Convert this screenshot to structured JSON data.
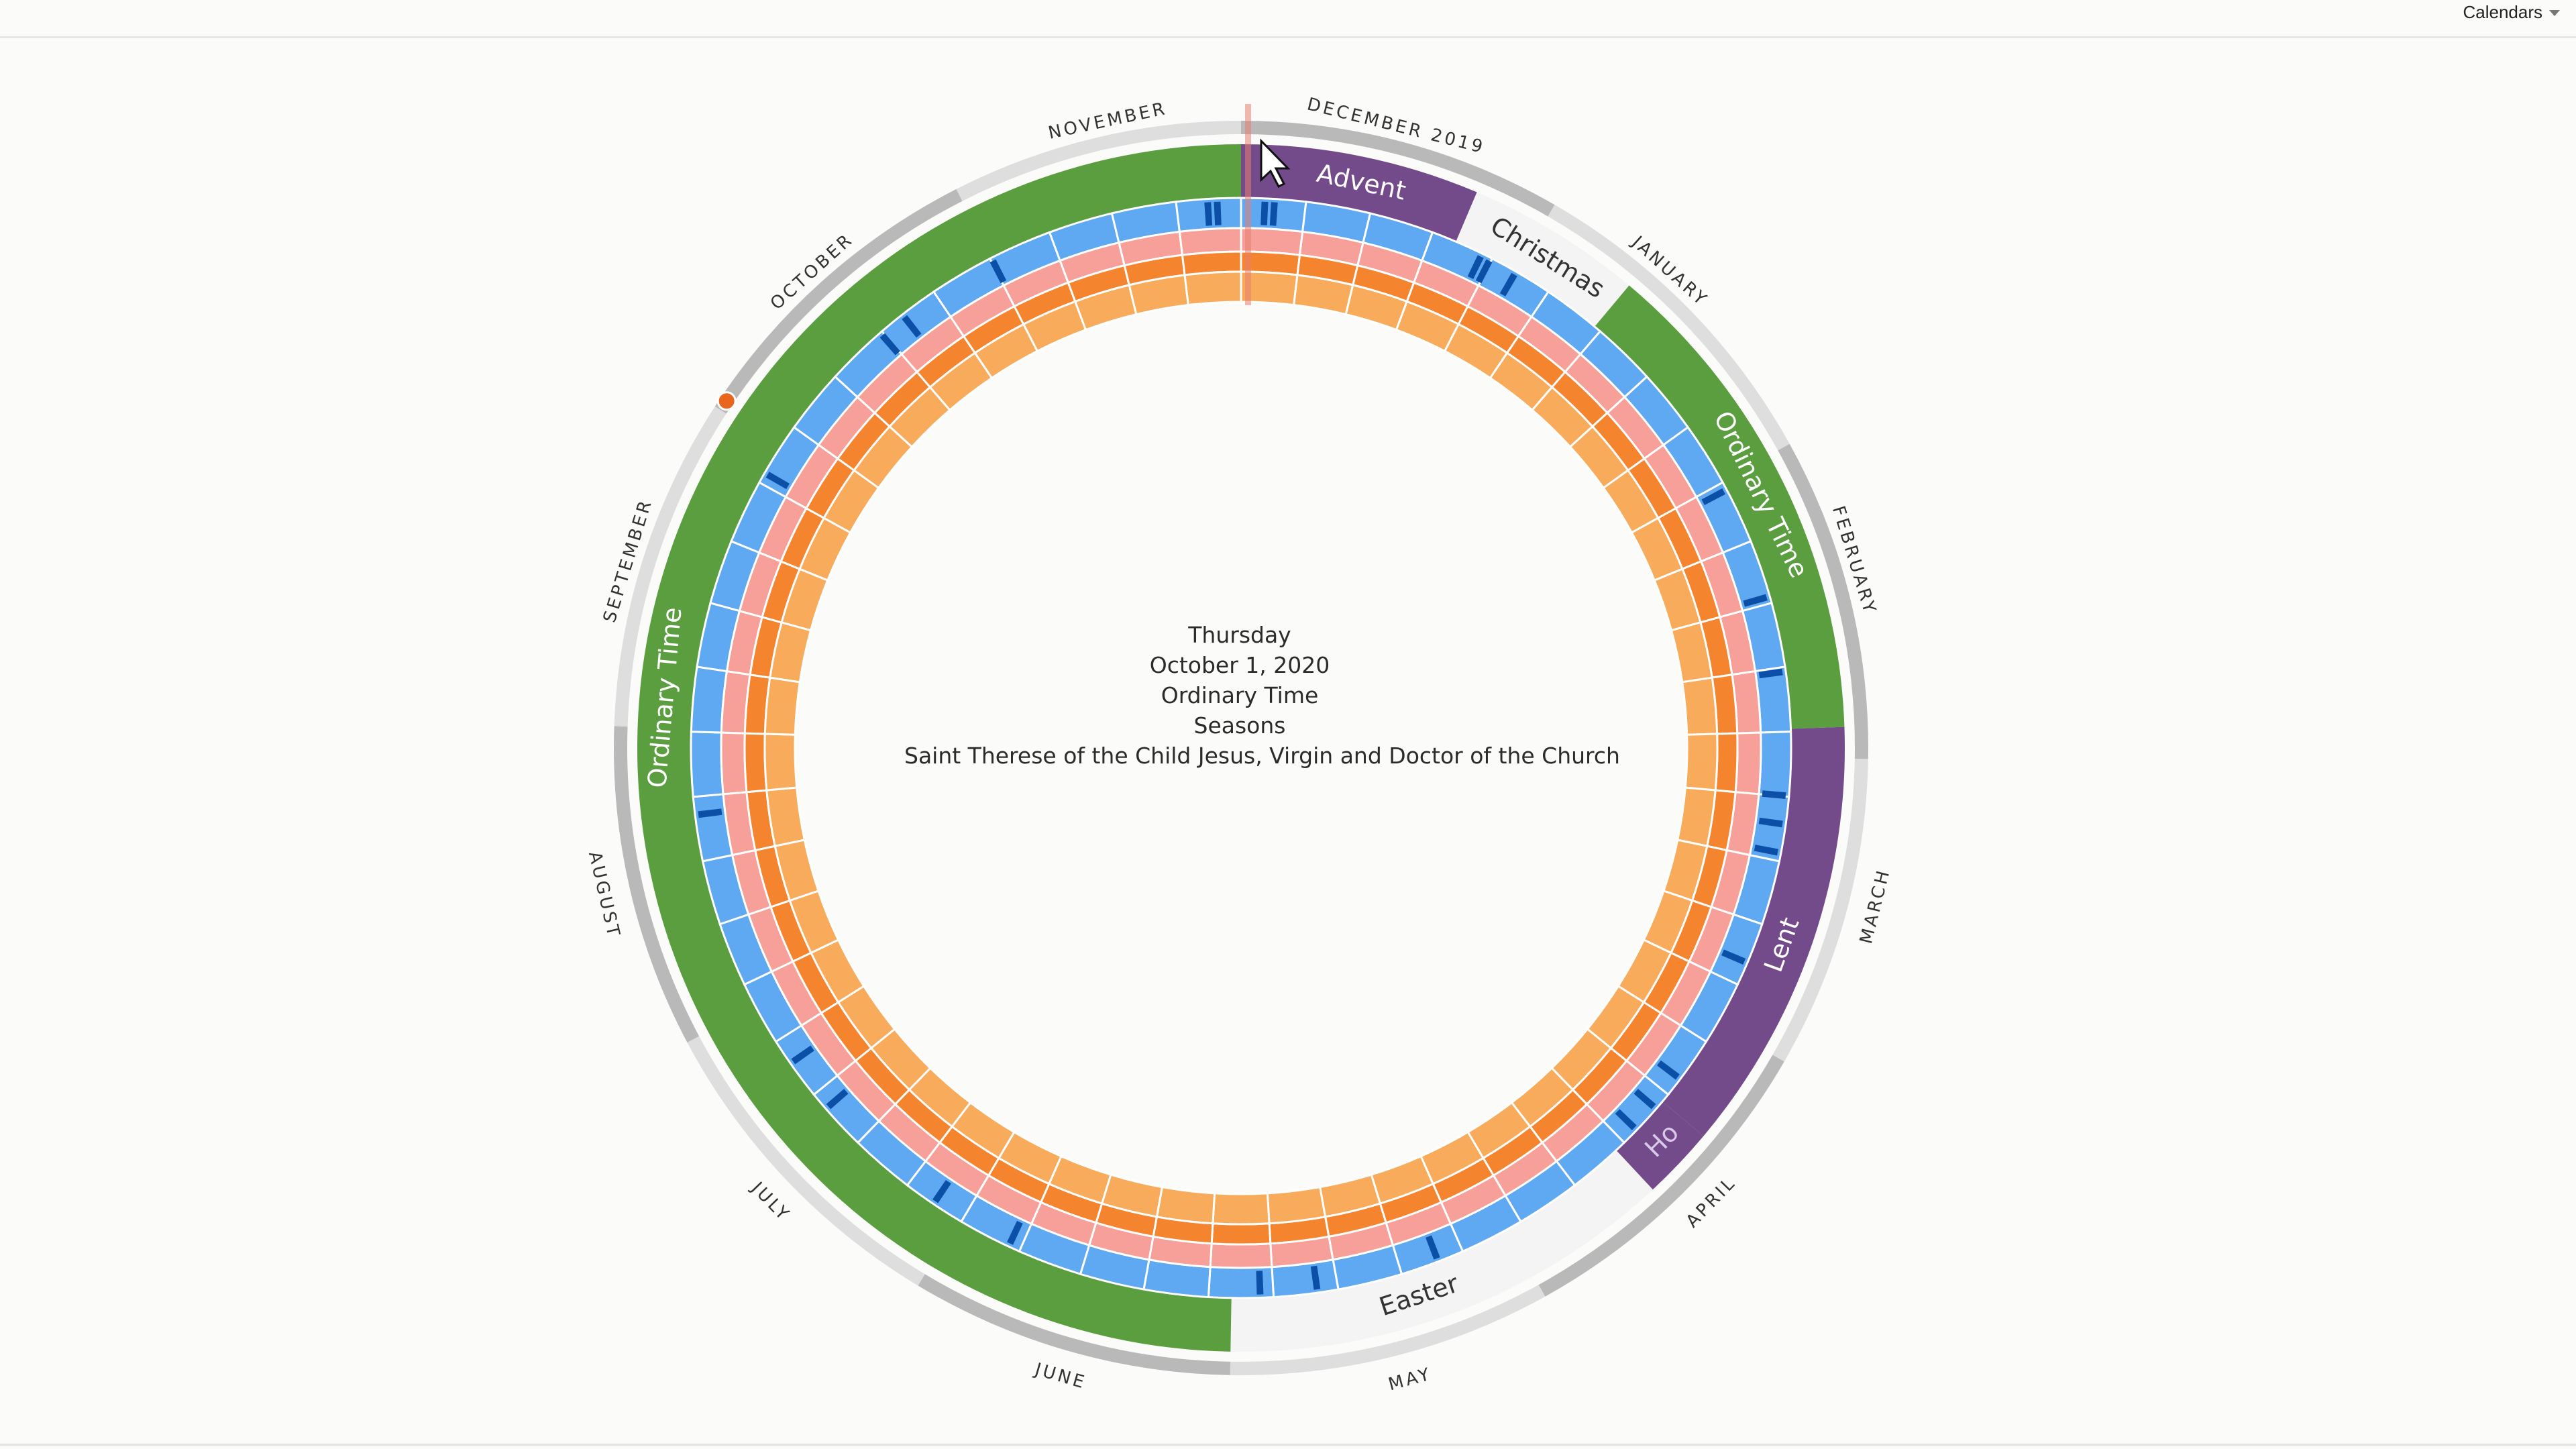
{
  "header": {
    "calendars_label": "Calendars"
  },
  "months": [
    "DECEMBER 2019",
    "JANUARY",
    "FEBRUARY",
    "MARCH",
    "APRIL",
    "MAY",
    "JUNE",
    "JULY",
    "AUGUST",
    "SEPTEMBER",
    "OCTOBER",
    "NOVEMBER"
  ],
  "seasons": [
    {
      "name": "Advent",
      "color": "purple",
      "label_color": "#ffffff"
    },
    {
      "name": "Christmas",
      "color": "white",
      "label_color": "#333333"
    },
    {
      "name": "Ordinary Time",
      "color": "green",
      "label_color": "#ffffff"
    },
    {
      "name": "Lent",
      "color": "purple",
      "label_color": "#ffffff"
    },
    {
      "name": "Ho",
      "color": "purple",
      "label_color": "#d9c8ea"
    },
    {
      "name": "Easter",
      "color": "white",
      "label_color": "#333333"
    },
    {
      "name": "Ordinary Time",
      "color": "green",
      "label_color": "#ffffff"
    }
  ],
  "center": {
    "weekday": "Thursday",
    "date": "October 1, 2020",
    "season": "Ordinary Time",
    "calendar": "Seasons",
    "celebration": "Saint Therese of the Child Jesus, Virgin and Doctor of the Church"
  },
  "palette": {
    "green": "#5a9e3f",
    "purple": "#734a8a",
    "white": "#f4f4f4",
    "blue": "#5fa8f2",
    "blue_mark": "#0b4fa6",
    "pink": "#f7a09a",
    "orange_dark": "#f5842f",
    "orange_light": "#f8ab5b",
    "month_ring_dark": "#b9b9b9",
    "month_ring_light": "#dedede",
    "today_marker": "#e8661e",
    "cursor_line": "#e58070"
  },
  "today_marker_label": "today-marker"
}
